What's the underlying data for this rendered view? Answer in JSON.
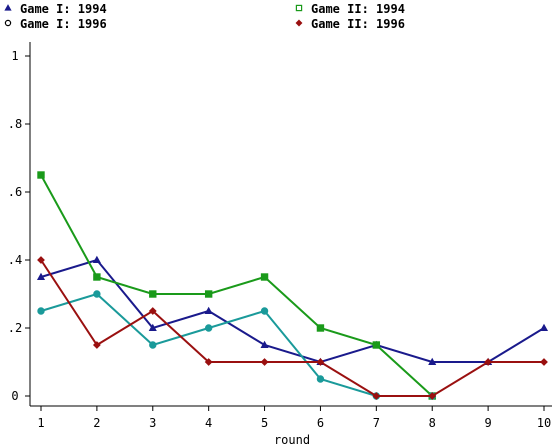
{
  "chart_data": {
    "type": "line",
    "title": "",
    "xlabel": "round",
    "ylabel": "",
    "x": [
      1,
      2,
      3,
      4,
      5,
      6,
      7,
      8,
      9,
      10
    ],
    "xlim": [
      1,
      10
    ],
    "ylim": [
      0,
      1
    ],
    "x_ticks": [
      "1",
      "2",
      "3",
      "4",
      "5",
      "6",
      "7",
      "8",
      "9",
      "10"
    ],
    "y_ticks": [
      "0",
      ".2",
      ".4",
      ".6",
      ".8",
      "1"
    ],
    "grid": false,
    "legend_position": "top",
    "series": [
      {
        "name": "Game I: 1994",
        "color": "#1a1a8c",
        "marker": "triangle",
        "values": [
          0.35,
          0.4,
          0.2,
          0.25,
          0.15,
          0.1,
          0.15,
          0.1,
          0.1,
          0.2
        ]
      },
      {
        "name": "Game II: 1994",
        "color": "#1a9a1a",
        "marker": "square",
        "values": [
          0.65,
          0.35,
          0.3,
          0.3,
          0.35,
          0.2,
          0.15,
          0.0,
          null,
          null
        ]
      },
      {
        "name": "Game I: 1996",
        "color": "#1a9a9a",
        "marker": "circle",
        "values": [
          0.25,
          0.3,
          0.15,
          0.2,
          0.25,
          0.05,
          0.0,
          0.0,
          null,
          null
        ]
      },
      {
        "name": "Game II: 1996",
        "color": "#9a1010",
        "marker": "diamond",
        "values": [
          0.4,
          0.15,
          0.25,
          0.1,
          0.1,
          0.1,
          0.0,
          0.0,
          0.1,
          0.1
        ]
      }
    ]
  }
}
